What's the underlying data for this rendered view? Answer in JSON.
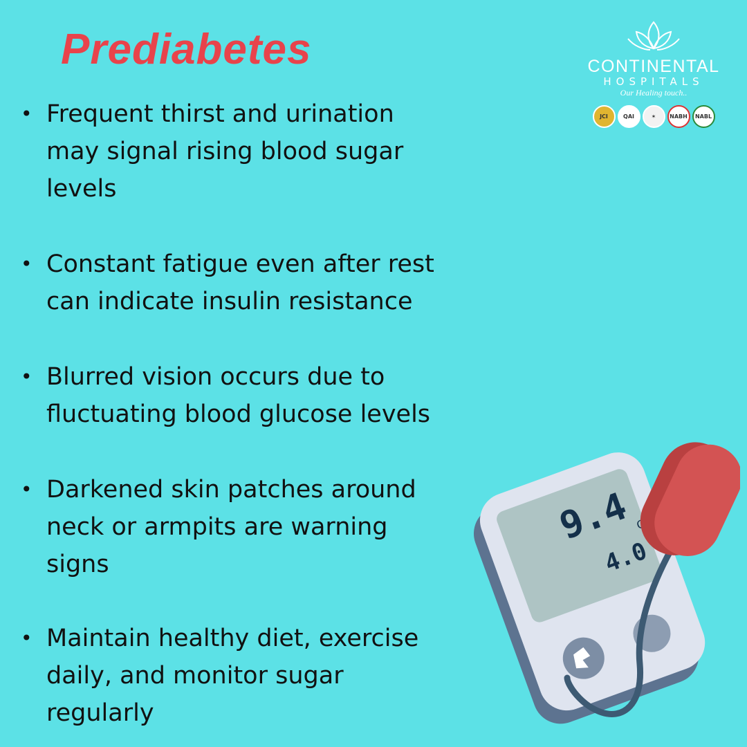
{
  "title": "Prediabetes",
  "bullets": [
    {
      "lines": [
        "Frequent thirst and urination",
        "may signal rising blood sugar",
        "levels"
      ]
    },
    {
      "lines": [
        "Constant fatigue even after rest",
        "can indicate insulin resistance"
      ]
    },
    {
      "lines": [
        "Blurred vision occurs due to",
        "fluctuating blood glucose levels"
      ]
    },
    {
      "lines": [
        "Darkened skin patches around",
        "neck or armpits are warning",
        "signs"
      ]
    },
    {
      "lines": [
        "Maintain healthy diet, exercise",
        "daily, and monitor sugar",
        "regularly"
      ]
    }
  ],
  "logo": {
    "name_line1": "CONTINENTAL",
    "name_line2": "HOSPITALS",
    "tagline": "Our Healing touch..",
    "seals": [
      "JCI",
      "QAI",
      "",
      "NABH",
      "NABL"
    ]
  },
  "device": {
    "reading_main": "9.4",
    "unit": "C",
    "reading_secondary": "4.0"
  },
  "colors": {
    "background": "#5ce1e6",
    "title": "#e8434b",
    "text": "#111111",
    "device_body": "#dfe4ef",
    "device_screen": "#aec4c4",
    "sensor": "#d35353"
  }
}
